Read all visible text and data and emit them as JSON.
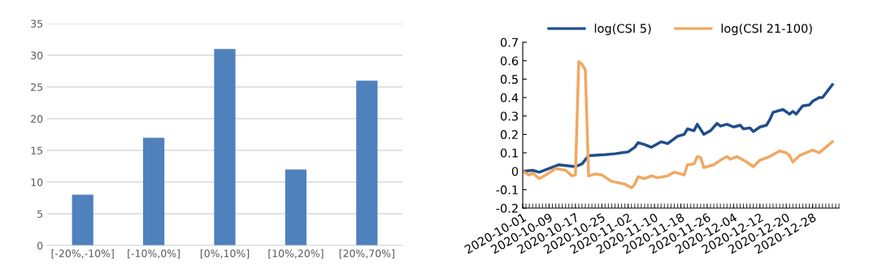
{
  "chart_data": [
    {
      "type": "bar",
      "categories": [
        "[-20%,-10%]",
        "[-10%,0%]",
        "[0%,10%]",
        "[10%,20%]",
        "[20%,70%]"
      ],
      "values": [
        8,
        17,
        31,
        12,
        26
      ],
      "color": "#4f81bd",
      "ylim": [
        0,
        35
      ],
      "yticks": [
        0,
        5,
        10,
        15,
        20,
        25,
        30,
        35
      ],
      "grid": "y",
      "legend": false
    },
    {
      "type": "line",
      "legend": "top",
      "grid": false,
      "xlim": [
        "2020-10-01",
        "2021-01-05"
      ],
      "ylim": [
        -0.2,
        0.7
      ],
      "xticks": [
        "2020-10-01",
        "2020-10-09",
        "2020-10-17",
        "2020-10-25",
        "2020-11-02",
        "2020-11-10",
        "2020-11-18",
        "2020-11-26",
        "2020-12-04",
        "2020-12-12",
        "2020-12-20",
        "2020-12-28"
      ],
      "yticks": [
        {
          "value": -0.2,
          "label": "-0.2"
        },
        {
          "value": -0.1,
          "label": "-0.1"
        },
        0,
        0.1,
        0.2,
        0.3,
        0.4,
        0.5,
        0.6,
        0.7
      ],
      "series": [
        {
          "name": "log(CSI 5)",
          "color": "#1f4e8c",
          "x": [
            "2020-10-01",
            "2020-10-04",
            "2020-10-06",
            "2020-10-12",
            "2020-10-17",
            "2020-10-19",
            "2020-10-21",
            "2020-10-26",
            "2020-10-29",
            "2020-11-02",
            "2020-11-04",
            "2020-11-05",
            "2020-11-07",
            "2020-11-09",
            "2020-11-12",
            "2020-11-14",
            "2020-11-17",
            "2020-11-19",
            "2020-11-20",
            "2020-11-22",
            "2020-11-23",
            "2020-11-25",
            "2020-11-27",
            "2020-11-29",
            "2020-11-30",
            "2020-12-02",
            "2020-12-04",
            "2020-12-06",
            "2020-12-07",
            "2020-12-09",
            "2020-12-10",
            "2020-12-12",
            "2020-12-14",
            "2020-12-15",
            "2020-12-16",
            "2020-12-19",
            "2020-12-21",
            "2020-12-22",
            "2020-12-23",
            "2020-12-25",
            "2020-12-27",
            "2020-12-28",
            "2020-12-30",
            "2020-12-31",
            "2021-01-03"
          ],
          "values": [
            0,
            0.005,
            -0.005,
            0.035,
            0.025,
            0.04,
            0.085,
            0.09,
            0.095,
            0.105,
            0.13,
            0.155,
            0.145,
            0.13,
            0.16,
            0.15,
            0.19,
            0.2,
            0.23,
            0.22,
            0.255,
            0.2,
            0.22,
            0.26,
            0.245,
            0.255,
            0.24,
            0.25,
            0.23,
            0.235,
            0.215,
            0.24,
            0.25,
            0.28,
            0.32,
            0.335,
            0.31,
            0.325,
            0.31,
            0.355,
            0.36,
            0.38,
            0.4,
            0.4,
            0.47
          ]
        },
        {
          "name": "log(CSI 21-100)",
          "color": "#f0a860",
          "x": [
            "2020-10-01",
            "2020-10-03",
            "2020-10-04",
            "2020-10-06",
            "2020-10-08",
            "2020-10-11",
            "2020-10-14",
            "2020-10-16",
            "2020-10-17",
            "2020-10-18",
            "2020-10-19",
            "2020-10-20",
            "2020-10-21",
            "2020-10-23",
            "2020-10-25",
            "2020-10-28",
            "2020-11-01",
            "2020-11-03",
            "2020-11-04",
            "2020-11-05",
            "2020-11-07",
            "2020-11-09",
            "2020-11-11",
            "2020-11-14",
            "2020-11-16",
            "2020-11-19",
            "2020-11-20",
            "2020-11-22",
            "2020-11-23",
            "2020-11-24",
            "2020-11-25",
            "2020-11-28",
            "2020-11-30",
            "2020-12-02",
            "2020-12-03",
            "2020-12-05",
            "2020-12-06",
            "2020-12-08",
            "2020-12-10",
            "2020-12-12",
            "2020-12-15",
            "2020-12-18",
            "2020-12-20",
            "2020-12-21",
            "2020-12-22",
            "2020-12-24",
            "2020-12-26",
            "2020-12-28",
            "2020-12-30",
            "2020-12-31",
            "2021-01-03"
          ],
          "values": [
            0,
            -0.02,
            -0.01,
            -0.04,
            -0.02,
            0.015,
            0.005,
            -0.025,
            -0.02,
            0.595,
            0.58,
            0.55,
            -0.025,
            -0.015,
            -0.02,
            -0.055,
            -0.07,
            -0.09,
            -0.07,
            -0.03,
            -0.04,
            -0.025,
            -0.035,
            -0.025,
            -0.005,
            -0.02,
            0.035,
            0.04,
            0.08,
            0.075,
            0.02,
            0.035,
            0.06,
            0.08,
            0.065,
            0.08,
            0.07,
            0.05,
            0.025,
            0.06,
            0.08,
            0.11,
            0.1,
            0.085,
            0.05,
            0.085,
            0.1,
            0.115,
            0.1,
            0.115,
            0.16
          ]
        }
      ]
    }
  ]
}
